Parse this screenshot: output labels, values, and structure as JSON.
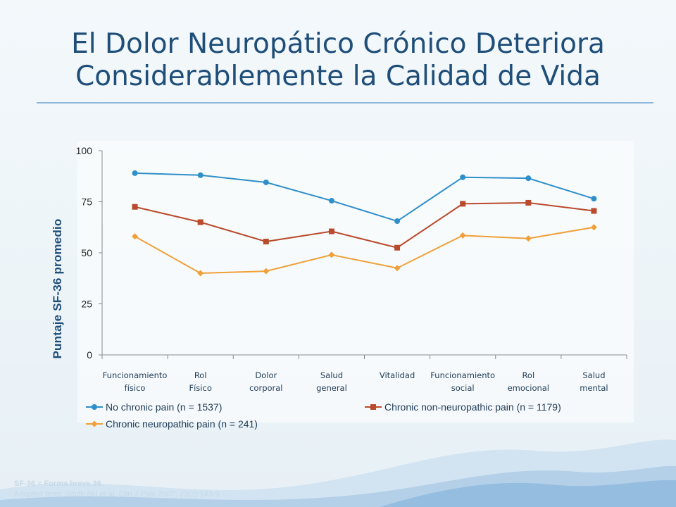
{
  "slide": {
    "title_line1": "El Dolor Neuropático Crónico Deteriora",
    "title_line2": "Considerablemente la Calidad de Vida",
    "footer_line1": "SF-36 = Forma breve 36",
    "footer_line2": "Adapted from: Smith BH et al. Clin J Pain 2007; 23(2):143-9."
  },
  "chart_data": {
    "type": "line",
    "ylabel": "Puntaje SF-36 promedio",
    "ylim": [
      0,
      100
    ],
    "yticks": [
      "0",
      "25",
      "50",
      "75",
      "100"
    ],
    "categories": [
      [
        "Funcionamiento",
        "físico"
      ],
      [
        "Rol",
        "Físico"
      ],
      [
        "Dolor",
        "corporal"
      ],
      [
        "Salud",
        "general"
      ],
      [
        "Vitalidad",
        ""
      ],
      [
        "Funcionamiento",
        "social"
      ],
      [
        "Rol",
        "emocional"
      ],
      [
        "Salud",
        "mental"
      ]
    ],
    "series": [
      {
        "name": "No chronic pain (n = 1537)",
        "color": "#2e8fc9",
        "marker": "circle",
        "values": [
          89,
          88,
          84.5,
          75.5,
          65.5,
          87,
          86.5,
          76.5
        ]
      },
      {
        "name": "Chronic non-neuropathic pain (n = 1179)",
        "color": "#b94a2c",
        "marker": "square",
        "values": [
          72.5,
          65,
          55.5,
          60.5,
          52.5,
          74,
          74.5,
          70.5
        ]
      },
      {
        "name": "Chronic neuropathic pain (n = 241)",
        "color": "#f0a03a",
        "marker": "diamond",
        "values": [
          58,
          40,
          41,
          49,
          42.5,
          58.5,
          57,
          62.5
        ]
      }
    ],
    "legend_position": "bottom",
    "grid": false
  }
}
